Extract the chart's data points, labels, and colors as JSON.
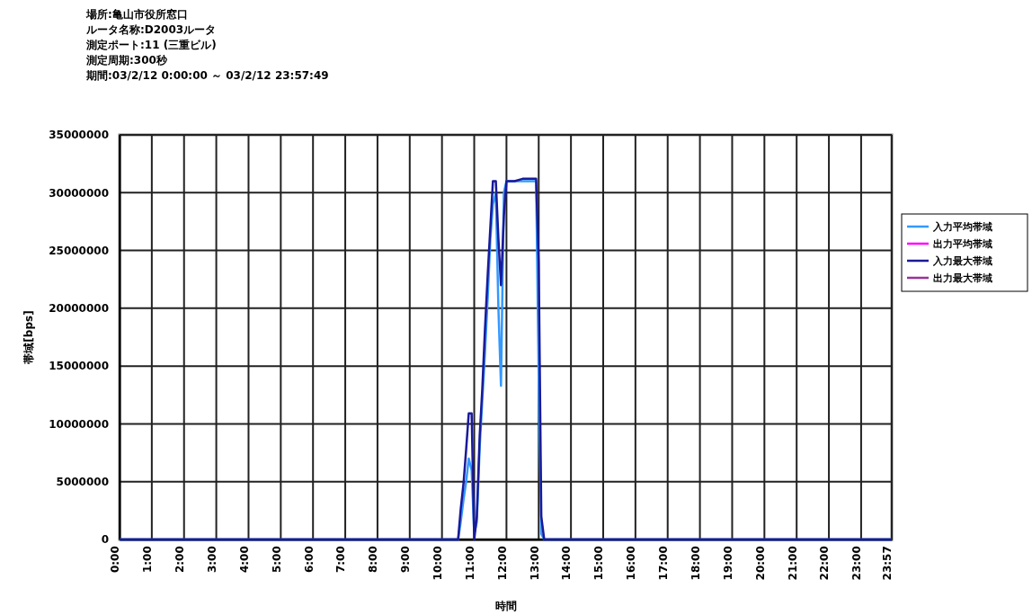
{
  "chart_data": {
    "type": "line",
    "title": "場所:亀山市役所窓口",
    "subtitle": "ルータ名称:D2003ルータ",
    "annotations": [
      "測定ポート:11 (三重ビル)",
      "測定周期:300秒",
      "期間:03/2/12 0:00:00 ～ 03/2/12 23:57:49"
    ],
    "xlabel": "時間",
    "ylabel": "帯域[bps]",
    "xlim": [
      0,
      23.95
    ],
    "xticks": [
      {
        "value": 0,
        "label": "0:00"
      },
      {
        "value": 1,
        "label": "1:00"
      },
      {
        "value": 2,
        "label": "2:00"
      },
      {
        "value": 3,
        "label": "3:00"
      },
      {
        "value": 4,
        "label": "4:00"
      },
      {
        "value": 5,
        "label": "5:00"
      },
      {
        "value": 6,
        "label": "6:00"
      },
      {
        "value": 7,
        "label": "7:00"
      },
      {
        "value": 8,
        "label": "8:00"
      },
      {
        "value": 9,
        "label": "9:00"
      },
      {
        "value": 10,
        "label": "10:00"
      },
      {
        "value": 11,
        "label": "11:00"
      },
      {
        "value": 12,
        "label": "12:00"
      },
      {
        "value": 13,
        "label": "13:00"
      },
      {
        "value": 14,
        "label": "14:00"
      },
      {
        "value": 15,
        "label": "15:00"
      },
      {
        "value": 16,
        "label": "16:00"
      },
      {
        "value": 17,
        "label": "17:00"
      },
      {
        "value": 18,
        "label": "18:00"
      },
      {
        "value": 19,
        "label": "19:00"
      },
      {
        "value": 20,
        "label": "20:00"
      },
      {
        "value": 21,
        "label": "21:00"
      },
      {
        "value": 22,
        "label": "22:00"
      },
      {
        "value": 23,
        "label": "23:00"
      },
      {
        "value": 23.95,
        "label": "23:57"
      }
    ],
    "ylim": [
      0,
      35000000
    ],
    "yticks": [
      0,
      5000000,
      10000000,
      15000000,
      20000000,
      25000000,
      30000000,
      35000000
    ],
    "grid": true,
    "legend": "right",
    "marker": "none",
    "line_style": "solid",
    "series": [
      {
        "name": "入力平均帯域",
        "color": "#3399ff",
        "x": [
          0,
          10.5,
          10.58,
          10.67,
          10.75,
          10.83,
          10.92,
          11,
          11.08,
          11.17,
          11.25,
          11.33,
          11.42,
          11.5,
          11.58,
          11.67,
          11.75,
          11.83,
          11.92,
          12,
          12.5,
          12.92,
          13,
          13.08,
          13.17,
          23.95
        ],
        "values": [
          0,
          0,
          1500000,
          3500000,
          5000000,
          7000000,
          6000000,
          500000,
          1500000,
          8000000,
          12000000,
          16000000,
          21000000,
          26000000,
          29000000,
          30000000,
          20000000,
          13300000,
          30000000,
          31000000,
          31000000,
          31000000,
          14000000,
          500000,
          0,
          0
        ]
      },
      {
        "name": "出力平均帯域",
        "color": "#ff00ff"
      },
      {
        "name": "入力最大帯域",
        "color": "#1a1a99",
        "x": [
          0,
          10.5,
          10.58,
          10.67,
          10.75,
          10.83,
          10.92,
          11,
          11.08,
          11.17,
          11.25,
          11.33,
          11.42,
          11.5,
          11.58,
          11.67,
          11.75,
          11.83,
          11.92,
          12,
          12.25,
          12.5,
          12.75,
          12.92,
          13,
          13.08,
          13.17,
          23.95
        ],
        "values": [
          0,
          0,
          2600000,
          4900000,
          7800000,
          10900000,
          10900000,
          0,
          2000000,
          9000000,
          13000000,
          18000000,
          23000000,
          27000000,
          31000000,
          31000000,
          26000000,
          22000000,
          28000000,
          31000000,
          31000000,
          31200000,
          31200000,
          31200000,
          24000000,
          2000000,
          0,
          0
        ]
      },
      {
        "name": "出力最大帯域",
        "color": "#993399"
      }
    ]
  }
}
